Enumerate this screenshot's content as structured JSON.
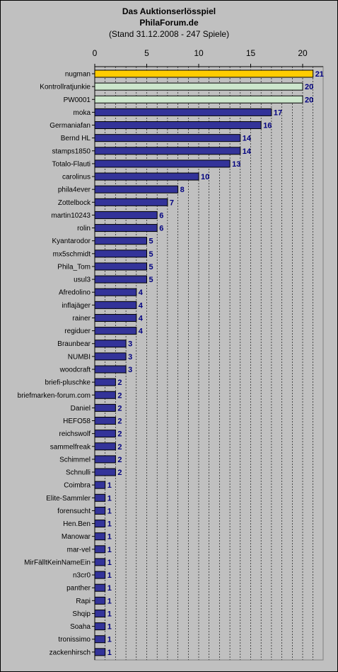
{
  "chart_data": {
    "type": "bar",
    "orientation": "horizontal",
    "title": "Das Auktionserlösspiel",
    "subtitle": "PhilaForum.de",
    "note": "(Stand 31.12.2008 - 247 Spiele)",
    "xlim": [
      0,
      22
    ],
    "xticks": [
      0,
      5,
      10,
      15,
      20
    ],
    "grid": "vertical dashed",
    "colors": {
      "background": "#c0c0c0",
      "plot_area": "#c0c0c0",
      "bar_default": "#333399",
      "bar_first": "#ffcc00",
      "bar_second": "#cce6cc",
      "bar_outline": "#000000",
      "value_label": "#000080",
      "grid": "#000000"
    },
    "bar_colors": {
      "nugman": "bar_first",
      "Kontrollratjunkie": "bar_second",
      "PW0001": "bar_second"
    },
    "categories": [
      "nugman",
      "Kontrollratjunkie",
      "PW0001",
      "moka",
      "Germaniafan",
      "Bernd HL",
      "stamps1850",
      "Totalo-Flauti",
      "carolinus",
      "phila4ever",
      "Zottelbock",
      "martin10243",
      "rolin",
      "Kyantarodor",
      "mx5schmidt",
      "Phila_Tom",
      "usul3",
      "Afredolino",
      "inflajäger",
      "rainer",
      "regiduer",
      "Braunbear",
      "NUMBI",
      "woodcraft",
      "briefi-pluschke",
      "briefmarken-forum.com",
      "Daniel",
      "HEFO58",
      "reichswolf",
      "sammelfreak",
      "Schimmel",
      "Schnulli",
      "Coimbra",
      "Elite-Sammler",
      "forensucht",
      "Hen.Ben",
      "Manowar",
      "mar-vel",
      "MirFälltKeinNameEin",
      "n3cr0",
      "panther",
      "Rapi",
      "Shqip",
      "Soaha",
      "tronissimo",
      "zackenhirsch"
    ],
    "values": [
      21,
      20,
      20,
      17,
      16,
      14,
      14,
      13,
      10,
      8,
      7,
      6,
      6,
      5,
      5,
      5,
      5,
      4,
      4,
      4,
      4,
      3,
      3,
      3,
      2,
      2,
      2,
      2,
      2,
      2,
      2,
      2,
      1,
      1,
      1,
      1,
      1,
      1,
      1,
      1,
      1,
      1,
      1,
      1,
      1,
      1
    ]
  }
}
